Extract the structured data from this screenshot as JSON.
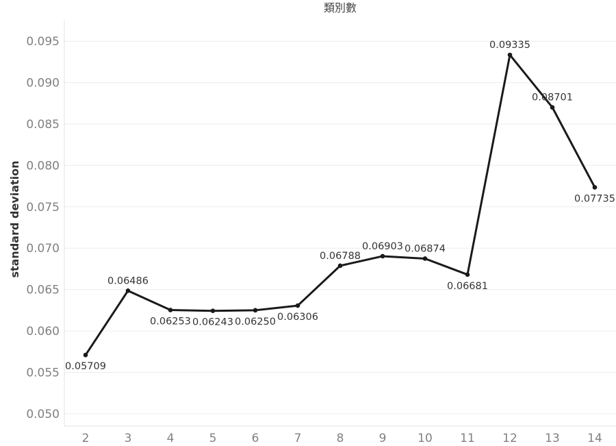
{
  "chart_data": {
    "type": "line",
    "title": "類別數",
    "xlabel": "",
    "ylabel": "standard deviation",
    "x": [
      2,
      3,
      4,
      5,
      6,
      7,
      8,
      9,
      10,
      11,
      12,
      13,
      14
    ],
    "x_tick_labels": [
      "2",
      "3",
      "4",
      "5",
      "6",
      "7",
      "8",
      "9",
      "10",
      "11",
      "12",
      "13",
      "14"
    ],
    "ylim": [
      0.0485,
      0.0975
    ],
    "y_ticks": [
      0.05,
      0.055,
      0.06,
      0.065,
      0.07,
      0.075,
      0.08,
      0.085,
      0.09,
      0.095
    ],
    "y_tick_labels": [
      "0.050",
      "0.055",
      "0.060",
      "0.065",
      "0.070",
      "0.075",
      "0.080",
      "0.085",
      "0.090",
      "0.095"
    ],
    "grid": true,
    "legend": "none",
    "series": [
      {
        "color": "#1a1a1a",
        "values": [
          0.05709,
          0.06486,
          0.06253,
          0.06243,
          0.0625,
          0.06306,
          0.06788,
          0.06903,
          0.06874,
          0.06681,
          0.09335,
          0.08701,
          0.07735
        ],
        "labels": [
          "0.05709",
          "0.06486",
          "0.06253",
          "0.06243",
          "0.06250",
          "0.06306",
          "0.06788",
          "0.06903",
          "0.06874",
          "0.06681",
          "0.09335",
          "0.08701",
          "0.07735"
        ],
        "label_positions": [
          "below",
          "above",
          "below",
          "below",
          "below",
          "below",
          "above",
          "above",
          "above",
          "below",
          "above",
          "above",
          "below"
        ]
      }
    ]
  }
}
